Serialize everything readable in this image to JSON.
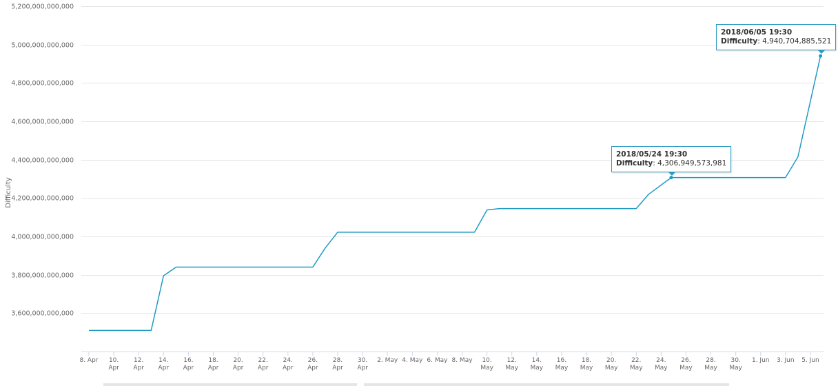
{
  "chart_data": {
    "type": "line",
    "ylabel": "Difficulty",
    "ylim": [
      3400000000000,
      5200000000000
    ],
    "yticks": [
      {
        "value": 3600000000000,
        "label": "3,600,000,000,000"
      },
      {
        "value": 3800000000000,
        "label": "3,800,000,000,000"
      },
      {
        "value": 4000000000000,
        "label": "4,000,000,000,000"
      },
      {
        "value": 4200000000000,
        "label": "4,200,000,000,000"
      },
      {
        "value": 4400000000000,
        "label": "4,400,000,000,000"
      },
      {
        "value": 4600000000000,
        "label": "4,600,000,000,000"
      },
      {
        "value": 4800000000000,
        "label": "4,800,000,000,000"
      },
      {
        "value": 5000000000000,
        "label": "5,000,000,000,000"
      },
      {
        "value": 5200000000000,
        "label": "5,200,000,000,000"
      }
    ],
    "xlim": [
      "2018-04-08",
      "2018-06-06"
    ],
    "xticks": [
      {
        "date": "2018-04-08",
        "label": [
          "8. Apr"
        ]
      },
      {
        "date": "2018-04-10",
        "label": [
          "10.",
          "Apr"
        ]
      },
      {
        "date": "2018-04-12",
        "label": [
          "12.",
          "Apr"
        ]
      },
      {
        "date": "2018-04-14",
        "label": [
          "14.",
          "Apr"
        ]
      },
      {
        "date": "2018-04-16",
        "label": [
          "16.",
          "Apr"
        ]
      },
      {
        "date": "2018-04-18",
        "label": [
          "18.",
          "Apr"
        ]
      },
      {
        "date": "2018-04-20",
        "label": [
          "20.",
          "Apr"
        ]
      },
      {
        "date": "2018-04-22",
        "label": [
          "22.",
          "Apr"
        ]
      },
      {
        "date": "2018-04-24",
        "label": [
          "24.",
          "Apr"
        ]
      },
      {
        "date": "2018-04-26",
        "label": [
          "26.",
          "Apr"
        ]
      },
      {
        "date": "2018-04-28",
        "label": [
          "28.",
          "Apr"
        ]
      },
      {
        "date": "2018-04-30",
        "label": [
          "30.",
          "Apr"
        ]
      },
      {
        "date": "2018-05-02",
        "label": [
          "2. May"
        ]
      },
      {
        "date": "2018-05-04",
        "label": [
          "4. May"
        ]
      },
      {
        "date": "2018-05-06",
        "label": [
          "6. May"
        ]
      },
      {
        "date": "2018-05-08",
        "label": [
          "8. May"
        ]
      },
      {
        "date": "2018-05-10",
        "label": [
          "10.",
          "May"
        ]
      },
      {
        "date": "2018-05-12",
        "label": [
          "12.",
          "May"
        ]
      },
      {
        "date": "2018-05-14",
        "label": [
          "14.",
          "May"
        ]
      },
      {
        "date": "2018-05-16",
        "label": [
          "16.",
          "May"
        ]
      },
      {
        "date": "2018-05-18",
        "label": [
          "18.",
          "May"
        ]
      },
      {
        "date": "2018-05-20",
        "label": [
          "20.",
          "May"
        ]
      },
      {
        "date": "2018-05-22",
        "label": [
          "22.",
          "May"
        ]
      },
      {
        "date": "2018-05-24",
        "label": [
          "24.",
          "May"
        ]
      },
      {
        "date": "2018-05-26",
        "label": [
          "26.",
          "May"
        ]
      },
      {
        "date": "2018-05-28",
        "label": [
          "28.",
          "May"
        ]
      },
      {
        "date": "2018-05-30",
        "label": [
          "30.",
          "May"
        ]
      },
      {
        "date": "2018-06-01",
        "label": [
          "1. Jun"
        ]
      },
      {
        "date": "2018-06-03",
        "label": [
          "3. Jun"
        ]
      },
      {
        "date": "2018-06-05",
        "label": [
          "5. Jun"
        ]
      }
    ],
    "grid": true,
    "legend": "none",
    "series": [
      {
        "color": "#1f9bc4",
        "points": [
          [
            "2018-04-08",
            3510000000000
          ],
          [
            "2018-04-13",
            3510000000000
          ],
          [
            "2018-04-14",
            3795000000000
          ],
          [
            "2018-04-15",
            3840000000000
          ],
          [
            "2018-04-26",
            3840000000000
          ],
          [
            "2018-04-27",
            3940000000000
          ],
          [
            "2018-04-28",
            4022000000000
          ],
          [
            "2018-05-09",
            4022000000000
          ],
          [
            "2018-05-10",
            4138000000000
          ],
          [
            "2018-05-11",
            4145000000000
          ],
          [
            "2018-05-22",
            4145000000000
          ],
          [
            "2018-05-23",
            4220000000000
          ],
          [
            "2018-05-24 19:30",
            4306949573981
          ],
          [
            "2018-06-03",
            4306949573981
          ],
          [
            "2018-06-04",
            4415000000000
          ],
          [
            "2018-06-05 19:30",
            4940704885521
          ]
        ]
      }
    ],
    "annotations": [
      {
        "date": "2018/05/24 19:30",
        "label": "Difficulty",
        "value": "4,306,949,573,981",
        "x": "2018-05-24 19:30",
        "y": 4306949573981
      },
      {
        "date": "2018/06/05 19:30",
        "label": "Difficulty",
        "value": "4,940,704,885,521",
        "x": "2018-06-05 19:30",
        "y": 4940704885521
      }
    ]
  }
}
